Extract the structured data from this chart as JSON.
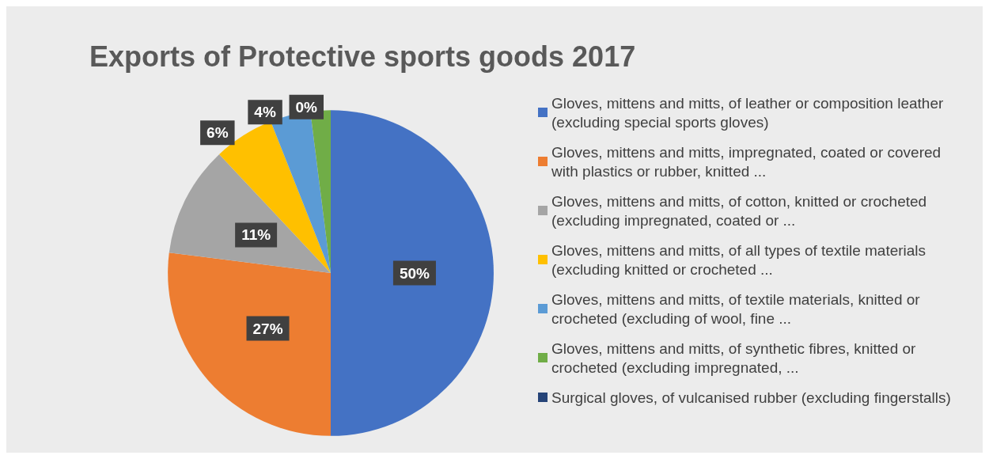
{
  "chart_data": {
    "type": "pie",
    "title": "Exports of Protective sports goods 2017",
    "categories": [
      "Gloves, mittens and mitts, of leather or composition leather (excluding special sports gloves)",
      "Gloves, mittens and mitts, impregnated, coated or covered with plastics or rubber, knitted ...",
      "Gloves, mittens and mitts, of cotton, knitted or crocheted (excluding impregnated, coated or ...",
      "Gloves, mittens and mitts, of all types of textile materials (excluding knitted or crocheted ...",
      "Gloves, mittens and mitts, of textile materials, knitted or crocheted (excluding of wool, fine ...",
      "Gloves, mittens and mitts, of synthetic fibres, knitted or crocheted (excluding impregnated, ...",
      "Surgical gloves, of vulcanised rubber (excluding fingerstalls)"
    ],
    "values": [
      50,
      27,
      11,
      6,
      4,
      2,
      0
    ],
    "value_labels": [
      "50%",
      "27%",
      "11%",
      "6%",
      "4%",
      null,
      "0%"
    ],
    "colors": [
      "#4472c4",
      "#ed7d31",
      "#a5a5a5",
      "#ffc000",
      "#5b9bd5",
      "#70ad47",
      "#264478"
    ],
    "legend": "right"
  }
}
